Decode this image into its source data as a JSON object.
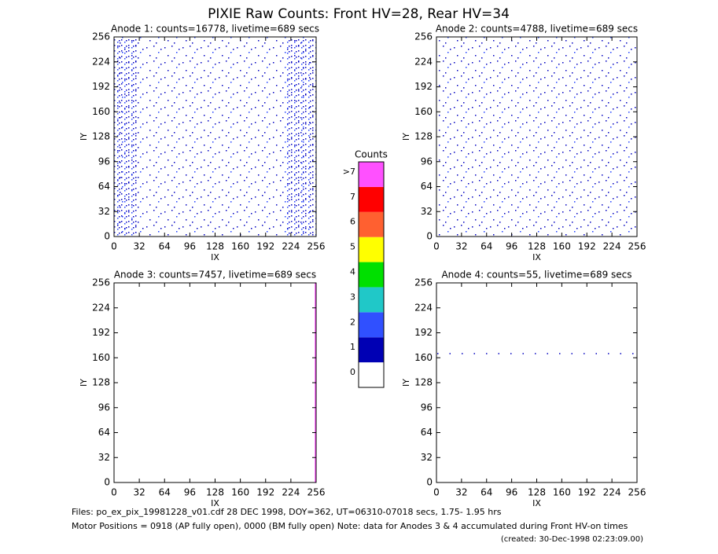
{
  "chart_data": {
    "type": "panels",
    "title": "PIXIE Raw Counts:  Front HV=28, Rear HV=34",
    "xlim": [
      0,
      256
    ],
    "ylim": [
      0,
      256
    ],
    "xticks": [
      0,
      32,
      64,
      96,
      128,
      160,
      192,
      224,
      256
    ],
    "yticks": [
      0,
      32,
      64,
      96,
      128,
      160,
      192,
      224,
      256
    ],
    "panels": [
      {
        "title": "Anode 1: counts=16778, livetime=689 secs",
        "xlabel": "IX",
        "ylabel": "IY"
      },
      {
        "title": "Anode 2: counts=4788, livetime=689 secs",
        "xlabel": "IX",
        "ylabel": "IY"
      },
      {
        "title": "Anode 3: counts=7457, livetime=689 secs",
        "xlabel": "IX",
        "ylabel": "IY"
      },
      {
        "title": "Anode 4: counts=55, livetime=689 secs",
        "xlabel": "IX",
        "ylabel": "IY"
      }
    ],
    "colorbar": {
      "title": "Counts",
      "labels": [
        "0",
        "1",
        "2",
        "3",
        "4",
        "5",
        "6",
        "7",
        ">7"
      ],
      "colors": [
        "#ffffff",
        "#0000b4",
        "#3050ff",
        "#20c8c8",
        "#00e000",
        "#ffff00",
        "#ff6030",
        "#ff0000",
        "#ff50ff"
      ]
    },
    "footer": [
      "Files: po_ex_pix_19981228_v01.cdf    28 DEC 1998, DOY=362, UT=06310-07018 secs,  1.75- 1.95 hrs",
      "Motor Positions = 0918 (AP fully open), 0000 (BM fully open)    Note: data for Anodes 3 & 4 accumulated during Front HV-on times",
      "(created: 30-Dec-1998 02:23:09.00)"
    ]
  }
}
